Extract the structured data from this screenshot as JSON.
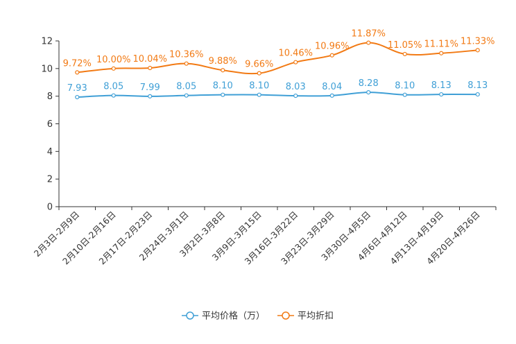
{
  "chart_data": {
    "type": "line",
    "categories": [
      "2月3日-2月9日",
      "2月10日-2月16日",
      "2月17日-2月23日",
      "2月24日-3月1日",
      "3月2日-3月8日",
      "3月9日-3月15日",
      "3月16日-3月22日",
      "3月23日-3月29日",
      "3月30日-4月5日",
      "4月6日-4月12日",
      "4月13日-4月19日",
      "4月20日-4月26日"
    ],
    "ylim": [
      0,
      12
    ],
    "yticks": [
      0,
      2,
      4,
      6,
      8,
      10,
      12
    ],
    "series": [
      {
        "name": "平均价格（万）",
        "color": "#3f9fd6",
        "values": [
          7.93,
          8.05,
          7.99,
          8.05,
          8.1,
          8.1,
          8.03,
          8.04,
          8.28,
          8.1,
          8.13,
          8.13
        ],
        "labels": [
          "7.93",
          "8.05",
          "7.99",
          "8.05",
          "8.10",
          "8.10",
          "8.03",
          "8.04",
          "8.28",
          "8.10",
          "8.13",
          "8.13"
        ]
      },
      {
        "name": "平均折扣",
        "color": "#f27a14",
        "values": [
          9.72,
          10.0,
          10.04,
          10.36,
          9.88,
          9.66,
          10.46,
          10.96,
          11.87,
          11.05,
          11.11,
          11.33
        ],
        "labels": [
          "9.72%",
          "10.00%",
          "10.04%",
          "10.36%",
          "9.88%",
          "9.66%",
          "10.46%",
          "10.96%",
          "11.87%",
          "11.05%",
          "11.11%",
          "11.33%"
        ]
      }
    ],
    "legend_position": "bottom-center"
  }
}
